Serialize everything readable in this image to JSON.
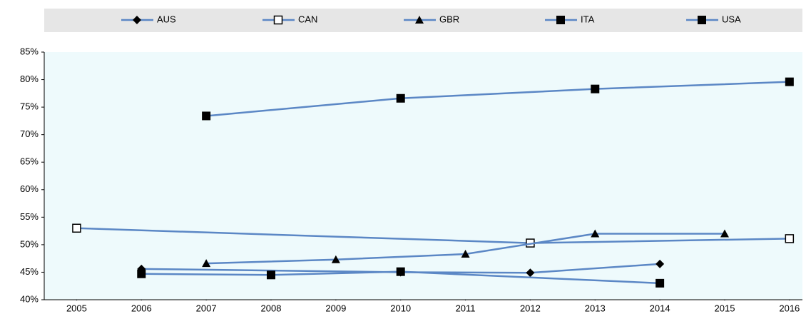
{
  "chart_data": {
    "type": "line",
    "xlim": [
      2004.5,
      2016.2
    ],
    "xticks": [
      2005,
      2006,
      2007,
      2008,
      2009,
      2010,
      2011,
      2012,
      2013,
      2014,
      2015,
      2016
    ],
    "ylim": [
      40,
      85
    ],
    "yticks": [
      {
        "value": 40,
        "label": "40%"
      },
      {
        "value": 45,
        "label": "45%"
      },
      {
        "value": 50,
        "label": "50%"
      },
      {
        "value": 55,
        "label": "55%"
      },
      {
        "value": 60,
        "label": "60%"
      },
      {
        "value": 65,
        "label": "65%"
      },
      {
        "value": 70,
        "label": "70%"
      },
      {
        "value": 75,
        "label": "75%"
      },
      {
        "value": 80,
        "label": "80%"
      },
      {
        "value": 85,
        "label": "85%"
      }
    ],
    "line_color": "#5b87c5",
    "series": [
      {
        "name": "AUS",
        "marker": "diamond",
        "color": "#000000",
        "x": [
          2006,
          2010,
          2012,
          2014
        ],
        "values": [
          45.6,
          45.0,
          44.9,
          46.5
        ]
      },
      {
        "name": "CAN",
        "marker": "open-square",
        "color": "#000000",
        "x": [
          2005,
          2012,
          2016
        ],
        "values": [
          53.0,
          50.3,
          51.1
        ]
      },
      {
        "name": "GBR",
        "marker": "triangle",
        "color": "#000000",
        "x": [
          2007,
          2009,
          2011,
          2013,
          2015
        ],
        "values": [
          46.6,
          47.3,
          48.3,
          52.0,
          52.0
        ]
      },
      {
        "name": "ITA",
        "marker": "square",
        "color": "#000000",
        "x": [
          2006,
          2008,
          2010,
          2014
        ],
        "values": [
          44.7,
          44.5,
          45.1,
          43.0
        ]
      },
      {
        "name": "USA",
        "marker": "square",
        "color": "#000000",
        "x": [
          2007,
          2010,
          2013,
          2016
        ],
        "values": [
          73.4,
          76.6,
          78.3,
          79.6
        ]
      }
    ]
  }
}
